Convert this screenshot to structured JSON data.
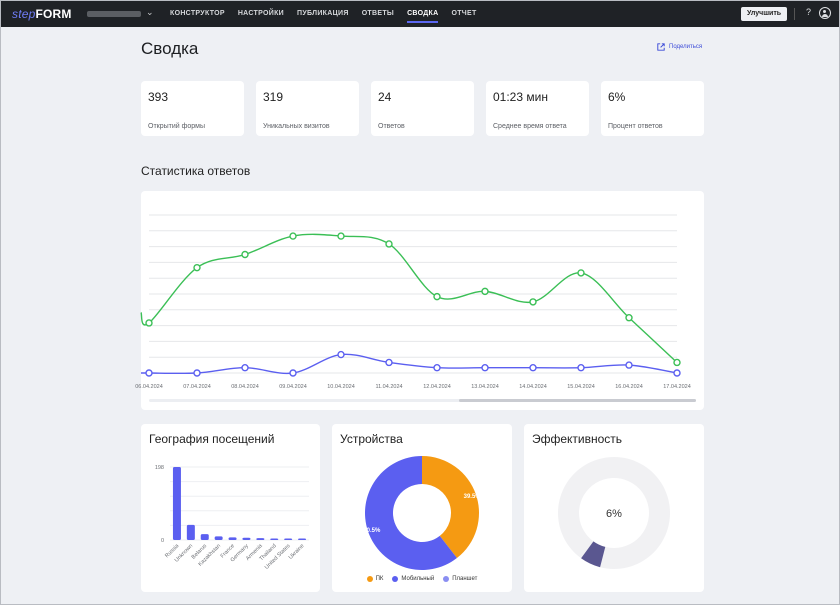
{
  "brand": {
    "prefix": "step",
    "name": "FORM"
  },
  "nav": {
    "items": [
      {
        "label": "КОНСТРУКТОР"
      },
      {
        "label": "НАСТРОЙКИ"
      },
      {
        "label": "ПУБЛИКАЦИЯ"
      },
      {
        "label": "ОТВЕТЫ"
      },
      {
        "label": "СВОДКА"
      },
      {
        "label": "ОТЧЕТ"
      }
    ],
    "active": "СВОДКА",
    "upgrade_label": "Улучшить",
    "help_label": "?"
  },
  "page": {
    "title": "Сводка",
    "share_label": "Поделиться"
  },
  "stats": [
    {
      "value": "393",
      "label": "Открытий формы"
    },
    {
      "value": "319",
      "label": "Уникальных визитов"
    },
    {
      "value": "24",
      "label": "Ответов"
    },
    {
      "value": "01:23 мин",
      "label": "Среднее время ответа"
    },
    {
      "value": "6%",
      "label": "Процент ответов"
    }
  ],
  "responses": {
    "title": "Статистика ответов",
    "chart_data": {
      "type": "line",
      "x": [
        "06.04.2024",
        "07.04.2024",
        "08.04.2024",
        "09.04.2024",
        "10.04.2024",
        "11.04.2024",
        "12.04.2024",
        "13.04.2024",
        "14.04.2024",
        "15.04.2024",
        "16.04.2024",
        "17.04.2024"
      ],
      "series": [
        {
          "values": [
            9.5,
            20,
            22.5,
            26,
            26,
            24.5,
            14.5,
            15.5,
            13.5,
            19,
            10.5,
            2
          ],
          "color": "#3bbf56"
        },
        {
          "values": [
            0,
            0,
            1,
            0,
            3.5,
            2,
            1,
            1,
            1,
            1,
            1.5,
            0
          ],
          "color": "#5b5ff0"
        }
      ],
      "grid": true
    }
  },
  "geography": {
    "title": "География посещений",
    "chart_data": {
      "type": "bar",
      "categories": [
        "Russia",
        "Unknown",
        "Belarus",
        "Kazakhstan",
        "France",
        "Germany",
        "Armenia",
        "Thailand",
        "United States",
        "Ukraine"
      ],
      "values": [
        198,
        41,
        16,
        10,
        7,
        6,
        5,
        4,
        3,
        2
      ],
      "yticks": [
        "198",
        "0"
      ],
      "ylim": [
        0,
        198
      ],
      "color": "#5b5ff0"
    }
  },
  "devices": {
    "title": "Устройства",
    "chart_data": {
      "type": "pie",
      "labels": [
        "ПК",
        "Мобильный",
        "Планшет"
      ],
      "values": [
        39.5,
        60.5,
        0
      ],
      "display_labels": [
        "39.5%",
        "60.5%",
        ""
      ],
      "colors": [
        "#f59a12",
        "#5b5ff0",
        "#8a8ef2"
      ]
    }
  },
  "efficiency": {
    "title": "Эффективность",
    "chart_data": {
      "type": "pie",
      "value_label": "6%",
      "values": [
        6,
        94
      ],
      "colors": [
        "#5a5790",
        "#f1f1f3"
      ]
    }
  }
}
